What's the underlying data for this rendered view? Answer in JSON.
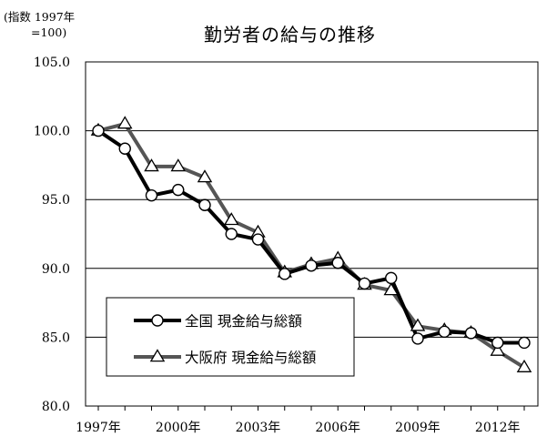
{
  "unit_note": {
    "line1": "(指数  1997年",
    "line2": "=100)"
  },
  "chart_data": {
    "type": "line",
    "title": "勤労者の給与の推移",
    "xlabel": "",
    "ylabel": "",
    "ylim": [
      80,
      105
    ],
    "yticks": [
      80,
      85,
      90,
      95,
      100,
      105
    ],
    "ytick_labels": [
      "80.0",
      "85.0",
      "90.0",
      "95.0",
      "100.0",
      "105.0"
    ],
    "xlim": [
      1997,
      2013
    ],
    "x": [
      1997,
      1998,
      1999,
      2000,
      2001,
      2002,
      2003,
      2004,
      2005,
      2006,
      2007,
      2008,
      2009,
      2010,
      2011,
      2012,
      2013
    ],
    "xtick_years": [
      1997,
      2000,
      2003,
      2006,
      2009,
      2012
    ],
    "xtick_labels": [
      "1997年",
      "2000年",
      "2003年",
      "2006年",
      "2009年",
      "2012年"
    ],
    "grid": "horizontal",
    "legend_position": "bottom-left",
    "series": [
      {
        "name": "全国 現金給与総額",
        "marker": "circle",
        "color": "#000000",
        "values": [
          100.0,
          98.7,
          95.3,
          95.7,
          94.6,
          92.5,
          92.1,
          89.6,
          90.2,
          90.4,
          88.9,
          89.3,
          84.9,
          85.4,
          85.3,
          84.6,
          84.6
        ]
      },
      {
        "name": "大阪府 現金給与総額",
        "marker": "triangle",
        "color": "#555555",
        "values": [
          100.0,
          100.5,
          97.4,
          97.4,
          96.6,
          93.5,
          92.6,
          89.7,
          90.3,
          90.7,
          88.8,
          88.4,
          85.8,
          85.5,
          85.3,
          84.0,
          82.8
        ]
      }
    ]
  }
}
